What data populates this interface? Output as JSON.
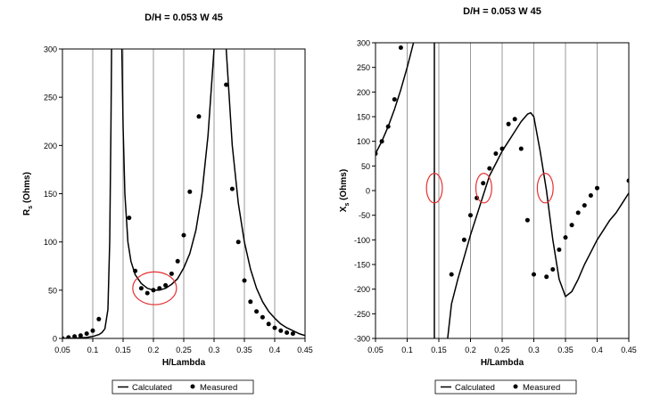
{
  "chart_data": [
    {
      "type": "line",
      "title": "D/H = 0.053  W 45",
      "xlabel": "H/Lambda",
      "ylabel": "Rs (Ohms)",
      "ylabel_main": "R",
      "ylabel_sub": "s",
      "ylabel_rest": " (Ohms)",
      "xlim": [
        0.05,
        0.45
      ],
      "ylim": [
        0,
        300
      ],
      "xticks": [
        "0.05",
        "0.1",
        "0.15",
        "0.2",
        "0.25",
        "0.3",
        "0.35",
        "0.4",
        "0.45"
      ],
      "yticks": [
        "0",
        "50",
        "100",
        "150",
        "200",
        "250",
        "300"
      ],
      "grid": "vertical",
      "legend": "bottom",
      "series": [
        {
          "name": "Calculated",
          "style": "line",
          "segments": [
            [
              [
                0.05,
                0
              ],
              [
                0.07,
                0.3
              ],
              [
                0.09,
                1
              ],
              [
                0.1,
                2
              ],
              [
                0.11,
                4
              ],
              [
                0.115,
                6
              ],
              [
                0.12,
                10
              ],
              [
                0.125,
                30
              ],
              [
                0.128,
                100
              ],
              [
                0.13,
                220
              ],
              [
                0.131,
                300
              ]
            ],
            [
              [
                0.148,
                300
              ],
              [
                0.15,
                220
              ],
              [
                0.153,
                150
              ],
              [
                0.158,
                100
              ],
              [
                0.163,
                80
              ],
              [
                0.17,
                66
              ],
              [
                0.18,
                57
              ],
              [
                0.19,
                52
              ],
              [
                0.2,
                50
              ],
              [
                0.21,
                50
              ],
              [
                0.22,
                52
              ],
              [
                0.23,
                56
              ],
              [
                0.24,
                62
              ],
              [
                0.25,
                73
              ],
              [
                0.26,
                88
              ],
              [
                0.27,
                112
              ],
              [
                0.28,
                150
              ],
              [
                0.29,
                210
              ],
              [
                0.295,
                255
              ],
              [
                0.3,
                300
              ]
            ],
            [
              [
                0.32,
                300
              ],
              [
                0.325,
                250
              ],
              [
                0.33,
                200
              ],
              [
                0.34,
                140
              ],
              [
                0.35,
                100
              ],
              [
                0.36,
                72
              ],
              [
                0.37,
                52
              ],
              [
                0.38,
                38
              ],
              [
                0.39,
                28
              ],
              [
                0.4,
                21
              ],
              [
                0.41,
                15
              ],
              [
                0.42,
                11
              ],
              [
                0.43,
                8
              ],
              [
                0.44,
                5
              ],
              [
                0.45,
                3
              ]
            ]
          ]
        },
        {
          "name": "Measured",
          "style": "points",
          "points": [
            [
              0.05,
              0
            ],
            [
              0.06,
              1
            ],
            [
              0.07,
              2
            ],
            [
              0.08,
              3
            ],
            [
              0.09,
              5
            ],
            [
              0.1,
              8
            ],
            [
              0.11,
              20
            ],
            [
              0.16,
              125
            ],
            [
              0.17,
              70
            ],
            [
              0.18,
              52
            ],
            [
              0.19,
              47
            ],
            [
              0.2,
              50
            ],
            [
              0.21,
              52
            ],
            [
              0.22,
              55
            ],
            [
              0.23,
              67
            ],
            [
              0.24,
              80
            ],
            [
              0.25,
              107
            ],
            [
              0.26,
              152
            ],
            [
              0.275,
              230
            ],
            [
              0.32,
              263
            ],
            [
              0.33,
              155
            ],
            [
              0.34,
              100
            ],
            [
              0.35,
              60
            ],
            [
              0.36,
              38
            ],
            [
              0.37,
              28
            ],
            [
              0.38,
              22
            ],
            [
              0.39,
              15
            ],
            [
              0.4,
              11
            ],
            [
              0.41,
              8
            ],
            [
              0.42,
              6
            ],
            [
              0.43,
              5
            ]
          ]
        }
      ],
      "annotations": [
        {
          "type": "ellipse",
          "color": "#e53030",
          "center": [
            0.202,
            52
          ],
          "rx": 0.036,
          "ry": 17
        }
      ]
    },
    {
      "type": "line",
      "title": "D/H = 0.053  W 45",
      "xlabel": "H/Lambda",
      "ylabel": "Xs (Ohms)",
      "ylabel_main": "X",
      "ylabel_sub": "s",
      "ylabel_rest": " (Ohms)",
      "xlim": [
        0.05,
        0.45
      ],
      "ylim": [
        -300,
        300
      ],
      "xticks": [
        "0.05",
        "0.1",
        "0.15",
        "0.2",
        "0.25",
        "0.3",
        "0.35",
        "0.4",
        "0.45"
      ],
      "yticks": [
        "-300",
        "-250",
        "-200",
        "-150",
        "-100",
        "-50",
        "0",
        "50",
        "100",
        "150",
        "200",
        "250",
        "300"
      ],
      "grid": "vertical",
      "legend": "bottom",
      "series": [
        {
          "name": "Calculated",
          "style": "line",
          "segments": [
            [
              [
                0.05,
                75
              ],
              [
                0.06,
                100
              ],
              [
                0.07,
                130
              ],
              [
                0.08,
                165
              ],
              [
                0.09,
                205
              ],
              [
                0.1,
                250
              ],
              [
                0.105,
                275
              ],
              [
                0.11,
                300
              ]
            ],
            [
              [
                0.143,
                300
              ],
              [
                0.143,
                -300
              ]
            ],
            [
              [
                0.164,
                -300
              ],
              [
                0.17,
                -230
              ],
              [
                0.18,
                -180
              ],
              [
                0.19,
                -135
              ],
              [
                0.2,
                -90
              ],
              [
                0.21,
                -50
              ],
              [
                0.22,
                -10
              ],
              [
                0.23,
                30
              ],
              [
                0.24,
                55
              ],
              [
                0.25,
                80
              ],
              [
                0.26,
                100
              ],
              [
                0.27,
                120
              ],
              [
                0.28,
                140
              ],
              [
                0.29,
                155
              ],
              [
                0.295,
                158
              ],
              [
                0.3,
                150
              ],
              [
                0.31,
                80
              ],
              [
                0.32,
                0
              ],
              [
                0.33,
                -100
              ],
              [
                0.34,
                -180
              ],
              [
                0.35,
                -215
              ],
              [
                0.36,
                -205
              ],
              [
                0.37,
                -180
              ],
              [
                0.38,
                -150
              ],
              [
                0.39,
                -125
              ],
              [
                0.4,
                -100
              ],
              [
                0.41,
                -80
              ],
              [
                0.42,
                -60
              ],
              [
                0.43,
                -45
              ],
              [
                0.44,
                -25
              ],
              [
                0.45,
                -5
              ]
            ]
          ]
        },
        {
          "name": "Measured",
          "style": "points",
          "points": [
            [
              0.05,
              75
            ],
            [
              0.06,
              100
            ],
            [
              0.07,
              130
            ],
            [
              0.08,
              185
            ],
            [
              0.09,
              290
            ],
            [
              0.17,
              -170
            ],
            [
              0.19,
              -100
            ],
            [
              0.2,
              -50
            ],
            [
              0.21,
              -15
            ],
            [
              0.22,
              15
            ],
            [
              0.23,
              45
            ],
            [
              0.24,
              75
            ],
            [
              0.25,
              85
            ],
            [
              0.26,
              135
            ],
            [
              0.27,
              145
            ],
            [
              0.28,
              85
            ],
            [
              0.29,
              -60
            ],
            [
              0.3,
              -170
            ],
            [
              0.32,
              -175
            ],
            [
              0.33,
              -160
            ],
            [
              0.34,
              -120
            ],
            [
              0.35,
              -95
            ],
            [
              0.36,
              -70
            ],
            [
              0.37,
              -45
            ],
            [
              0.38,
              -30
            ],
            [
              0.39,
              -10
            ],
            [
              0.4,
              5
            ],
            [
              0.45,
              20
            ]
          ]
        }
      ],
      "annotations": [
        {
          "type": "ellipse",
          "color": "#e53030",
          "center": [
            0.143,
            5
          ],
          "rx": 0.0125,
          "ry": 30
        },
        {
          "type": "ellipse",
          "color": "#e53030",
          "center": [
            0.221,
            5
          ],
          "rx": 0.0125,
          "ry": 30
        },
        {
          "type": "ellipse",
          "color": "#e53030",
          "center": [
            0.318,
            5
          ],
          "rx": 0.0125,
          "ry": 30
        }
      ]
    }
  ],
  "legend_labels": {
    "calculated": "Calculated",
    "measured": "Measured"
  }
}
